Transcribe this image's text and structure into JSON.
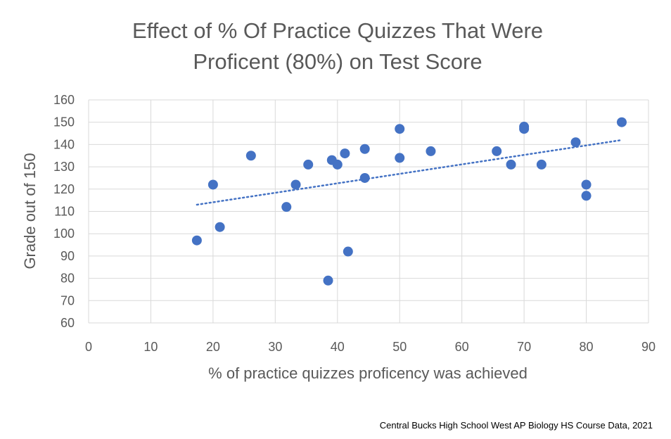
{
  "chart_data": {
    "type": "scatter",
    "title_lines": [
      "Effect of % Of Practice Quizzes That Were",
      "Proficent (80%) on Test Score"
    ],
    "xlabel": "% of practice quizzes proficency was achieved",
    "ylabel": "Grade out of 150",
    "xlim": [
      0,
      90
    ],
    "ylim": [
      60,
      160
    ],
    "xticks": [
      0,
      10,
      20,
      30,
      40,
      50,
      60,
      70,
      80,
      90
    ],
    "yticks": [
      60,
      70,
      80,
      90,
      100,
      110,
      120,
      130,
      140,
      150,
      160
    ],
    "grid": true,
    "trendline": {
      "type": "linear",
      "x": [
        17.4,
        85.7
      ],
      "y": [
        113,
        142
      ]
    },
    "points": [
      {
        "x": 17.4,
        "y": 97
      },
      {
        "x": 20,
        "y": 122
      },
      {
        "x": 21.1,
        "y": 103
      },
      {
        "x": 26.1,
        "y": 135
      },
      {
        "x": 31.8,
        "y": 112
      },
      {
        "x": 33.3,
        "y": 122
      },
      {
        "x": 35.3,
        "y": 131
      },
      {
        "x": 38.5,
        "y": 79
      },
      {
        "x": 39.1,
        "y": 133
      },
      {
        "x": 40,
        "y": 131
      },
      {
        "x": 41.2,
        "y": 136
      },
      {
        "x": 41.7,
        "y": 92
      },
      {
        "x": 44.4,
        "y": 138
      },
      {
        "x": 44.4,
        "y": 125
      },
      {
        "x": 50,
        "y": 147
      },
      {
        "x": 50,
        "y": 134
      },
      {
        "x": 55,
        "y": 137
      },
      {
        "x": 65.6,
        "y": 137
      },
      {
        "x": 67.9,
        "y": 131
      },
      {
        "x": 70,
        "y": 148
      },
      {
        "x": 70,
        "y": 147
      },
      {
        "x": 72.8,
        "y": 131
      },
      {
        "x": 78.3,
        "y": 141
      },
      {
        "x": 80,
        "y": 122
      },
      {
        "x": 80,
        "y": 117
      },
      {
        "x": 85.7,
        "y": 150
      }
    ],
    "colors": {
      "marker": "#4472C4",
      "trendline": "#4472C4",
      "grid": "#D9D9D9",
      "text": "#595959"
    }
  },
  "source_note": "Central Bucks High School West AP Biology HS Course Data, 2021"
}
